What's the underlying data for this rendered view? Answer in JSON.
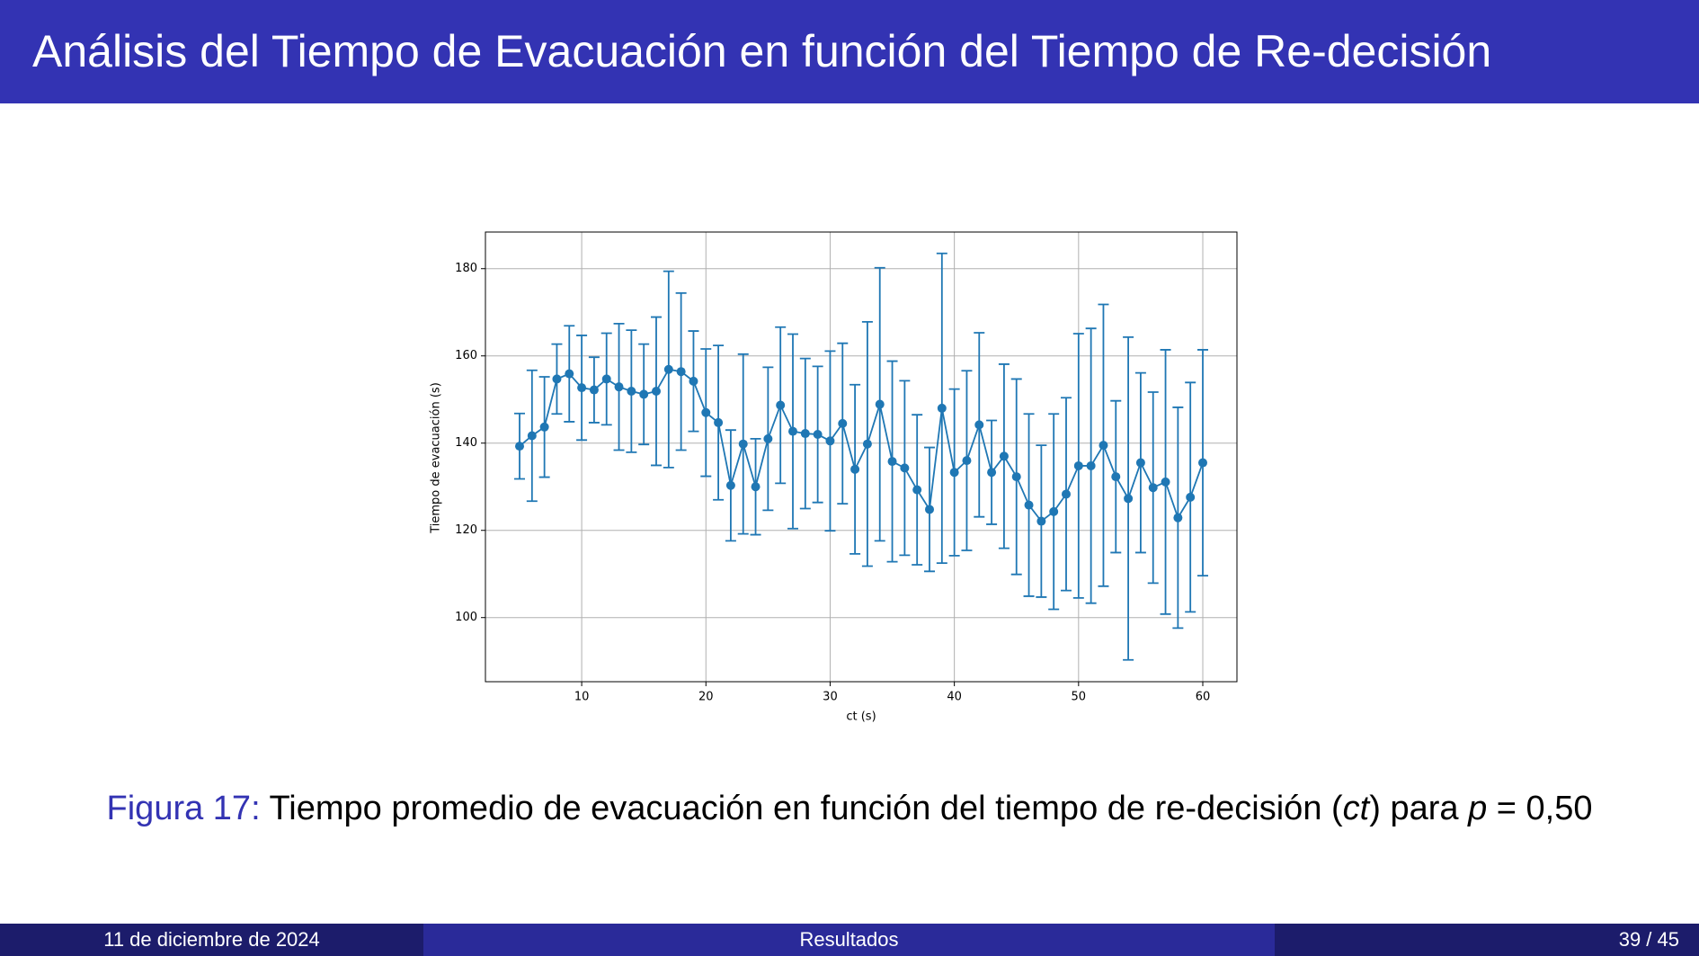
{
  "header": {
    "title": "Análisis del Tiempo de Evacuación en función del Tiempo de Re-decisión"
  },
  "chart_data": {
    "type": "errorbar",
    "xlabel": "ct (s)",
    "ylabel": "Tiempo de evacuación (s)",
    "x": [
      5,
      6,
      7,
      8,
      9,
      10,
      11,
      12,
      13,
      14,
      15,
      16,
      17,
      18,
      19,
      20,
      21,
      22,
      23,
      24,
      25,
      26,
      27,
      28,
      29,
      30,
      31,
      32,
      33,
      34,
      35,
      36,
      37,
      38,
      39,
      40,
      41,
      42,
      43,
      44,
      45,
      46,
      47,
      48,
      49,
      50,
      51,
      52,
      53,
      54,
      55,
      56,
      57,
      58,
      59,
      60
    ],
    "series": [
      {
        "color": "#1f77b4",
        "values": [
          139.3,
          141.7,
          143.7,
          154.7,
          155.9,
          152.7,
          152.2,
          154.7,
          152.9,
          151.9,
          151.2,
          151.9,
          156.9,
          156.4,
          154.2,
          147.0,
          144.7,
          130.3,
          139.8,
          130.0,
          141.0,
          148.7,
          142.7,
          142.2,
          142.0,
          140.5,
          144.5,
          134.0,
          139.8,
          148.9,
          135.8,
          134.3,
          129.3,
          124.8,
          148.0,
          133.3,
          136.0,
          144.2,
          133.3,
          137.0,
          132.3,
          125.8,
          122.1,
          124.3,
          128.3,
          134.8,
          134.8,
          139.5,
          132.3,
          127.3,
          135.5,
          129.8,
          131.1,
          122.9,
          127.6,
          135.5
        ],
        "errors": [
          7.5,
          15,
          11.5,
          8,
          11,
          12,
          7.5,
          10.5,
          14.5,
          14,
          11.5,
          17,
          22.5,
          18,
          11.5,
          14.6,
          17.7,
          12.7,
          20.6,
          11,
          16.4,
          17.9,
          22.3,
          17.2,
          15.6,
          20.6,
          18.4,
          19.4,
          28,
          31.3,
          23,
          20,
          17.2,
          14.2,
          35.5,
          19.1,
          20.6,
          21.1,
          11.9,
          21.1,
          22.4,
          20.9,
          17.4,
          22.4,
          22.1,
          30.3,
          31.5,
          32.3,
          17.4,
          37,
          20.6,
          21.9,
          30.3,
          25.3,
          26.3,
          25.9
        ]
      }
    ],
    "xlim": [
      2.25,
      62.75
    ],
    "ylim": [
      85.3,
      188.4
    ],
    "xticks": [
      10,
      20,
      30,
      40,
      50,
      60
    ],
    "yticks": [
      100,
      120,
      140,
      160,
      180
    ],
    "grid": true
  },
  "caption": {
    "label": "Figura 17:",
    "parts": [
      "Tiempo promedio de evacuación en función del tiempo de re-decisión (",
      "ct",
      ") para ",
      "p",
      " = 0,50"
    ]
  },
  "footer": {
    "date": "11 de diciembre de 2024",
    "section": "Resultados",
    "page": "39 / 45"
  }
}
